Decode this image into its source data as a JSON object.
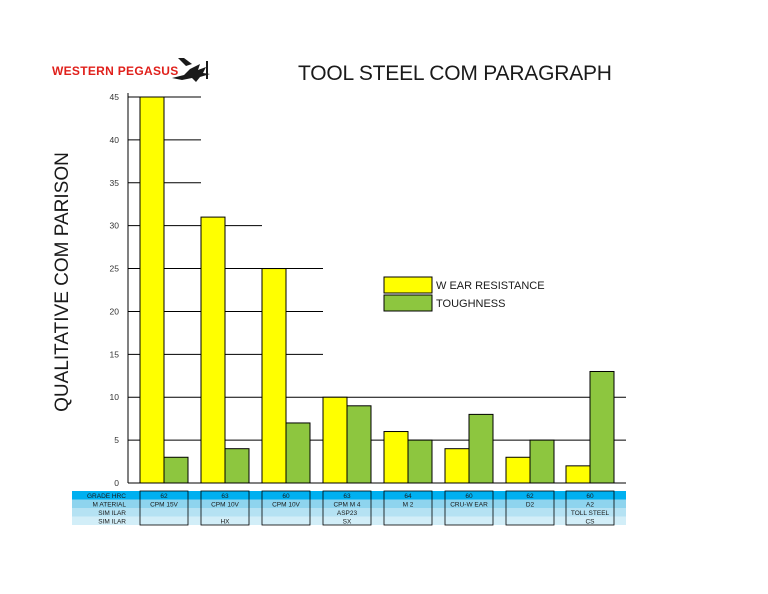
{
  "logo": {
    "text": "WESTERN PEGASUS",
    "icon": "pegasus-icon",
    "color": "#e0201b"
  },
  "chart_data": {
    "type": "bar",
    "title": "TOOL STEEL COM PARAGRAPH",
    "ylabel": "QUALITATIVE COM PARISON",
    "ylim": [
      0,
      45
    ],
    "yticks": [
      0,
      5,
      10,
      15,
      20,
      25,
      30,
      35,
      40,
      45
    ],
    "categories": [
      "CPM 15V",
      "CPM 10V",
      "CPM 10V",
      "CPM M 4",
      "M 2",
      "CRU-W EAR",
      "D2",
      "A2"
    ],
    "series": [
      {
        "name": "W EAR RESISTANCE",
        "color": "#ffff00",
        "values": [
          45,
          31,
          25,
          10,
          6,
          4,
          3,
          2
        ]
      },
      {
        "name": "TOUGHNESS",
        "color": "#8dc63f",
        "values": [
          3,
          4,
          7,
          9,
          5,
          8,
          5,
          13
        ]
      }
    ],
    "legend_position": "center-right",
    "table": {
      "rows": [
        {
          "label": "GRADE HRC",
          "values": [
            "62",
            "63",
            "60",
            "63",
            "64",
            "60",
            "62",
            "60"
          ],
          "color": "#00b0f0"
        },
        {
          "label": "M ATERIAL",
          "values": [
            "CPM 15V",
            "CPM 10V",
            "CPM 10V",
            "CPM M 4",
            "M 2",
            "CRU-W EAR",
            "D2",
            "A2"
          ],
          "color": "#8ed4ee"
        },
        {
          "label": "SIM ILAR",
          "values": [
            "",
            "",
            "",
            "ASP23",
            "",
            "",
            "",
            "TOLL STEEL"
          ],
          "color": "#b5e2f3"
        },
        {
          "label": "SIM ILAR",
          "values": [
            "",
            "HX",
            "",
            "SX",
            "",
            "",
            "",
            "CS"
          ],
          "color": "#d2eef8"
        }
      ]
    }
  }
}
